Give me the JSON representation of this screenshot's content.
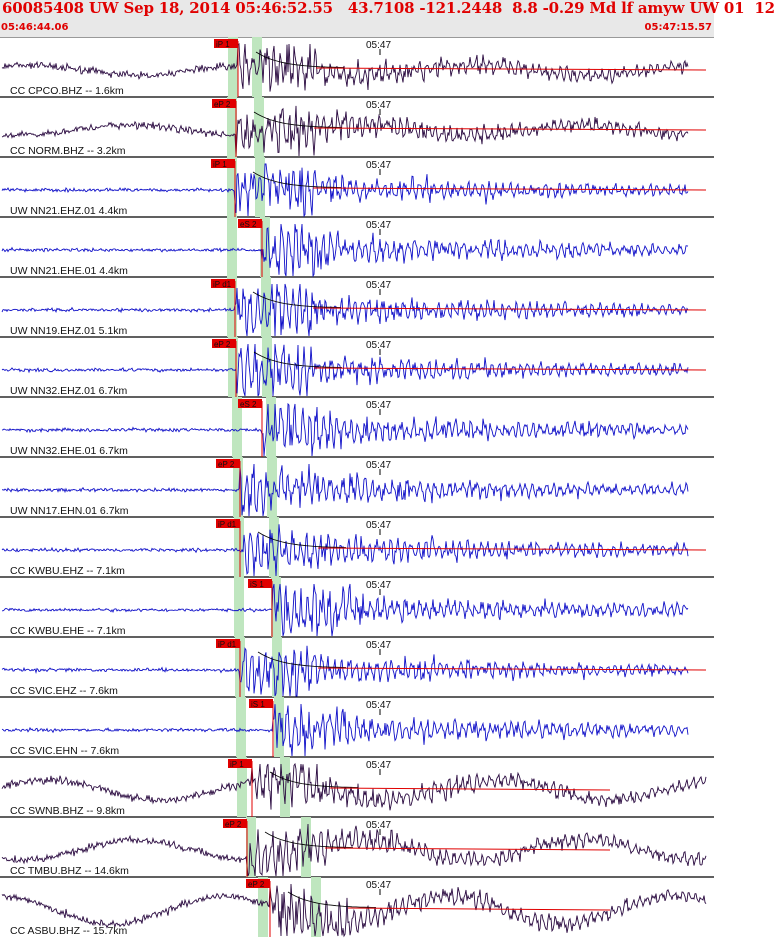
{
  "header": {
    "title": "60085408 UW Sep 18, 2014 05:46:52.55   43.7108 -121.2448  8.8 -0.29 Md lf amyw UW 01  12",
    "start_time": "05:46:44.06",
    "end_time": "05:47:15.57"
  },
  "colors": {
    "trace_blue": "#1010c8",
    "trace_dark": "#2a0a40",
    "coda": "#e00000",
    "pick_box": "#e00000",
    "window_band": "#bfe6bf",
    "header_text": "#e00000"
  },
  "minute_label": "05:47",
  "traces": [
    {
      "label": "CC CPCO.BHZ -- 1.6km",
      "pick": "iP 1",
      "color": "dark",
      "coda": true
    },
    {
      "label": "CC NORM.BHZ -- 3.2km",
      "pick": "eP 2",
      "color": "dark",
      "coda": true
    },
    {
      "label": "UW NN21.EHZ.01 4.4km",
      "pick": "iP 1",
      "color": "blue",
      "coda": true
    },
    {
      "label": "UW NN21.EHE.01 4.4km",
      "pick": "eS 2",
      "color": "blue",
      "coda": false
    },
    {
      "label": "UW NN19.EHZ.01 5.1km",
      "pick": "iP d1",
      "color": "blue",
      "coda": true
    },
    {
      "label": "UW NN32.EHZ.01 6.7km",
      "pick": "eP 2",
      "color": "blue",
      "coda": true
    },
    {
      "label": "UW NN32.EHE.01 6.7km",
      "pick": "eS 2",
      "color": "blue",
      "coda": false
    },
    {
      "label": "UW NN17.EHN.01 6.7km",
      "pick": "eP 2",
      "color": "blue",
      "coda": false
    },
    {
      "label": "CC KWBU.EHZ -- 7.1km",
      "pick": "iP d1",
      "color": "blue",
      "coda": true
    },
    {
      "label": "CC KWBU.EHE -- 7.1km",
      "pick": "iS 1",
      "color": "blue",
      "coda": false
    },
    {
      "label": "CC SVIC.EHZ -- 7.6km",
      "pick": "iP d1",
      "color": "blue",
      "coda": true
    },
    {
      "label": "CC SVIC.EHN -- 7.6km",
      "pick": "iS 1",
      "color": "blue",
      "coda": false
    },
    {
      "label": "CC SWNB.BHZ -- 9.8km",
      "pick": "iP 1",
      "color": "dark",
      "coda": true
    },
    {
      "label": "CC TMBU.BHZ -- 14.6km",
      "pick": "eP 2",
      "color": "dark",
      "coda": true
    },
    {
      "label": "CC ASBU.BHZ -- 15.7km",
      "pick": "eP 2",
      "color": "dark",
      "coda": true
    }
  ]
}
